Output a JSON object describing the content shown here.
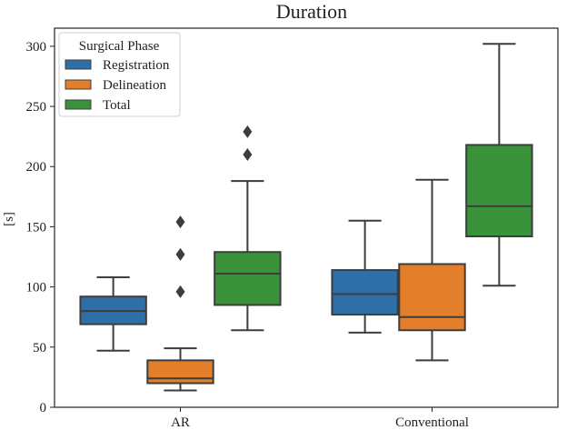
{
  "chart_data": {
    "type": "box",
    "title": "Duration",
    "xlabel": "",
    "ylabel": "[s]",
    "ylim": [
      0,
      315
    ],
    "yticks": [
      0,
      50,
      100,
      150,
      200,
      250,
      300
    ],
    "categories": [
      "AR",
      "Conventional"
    ],
    "legend": {
      "title": "Surgical Phase",
      "placement": "top-left"
    },
    "series": [
      {
        "name": "Registration",
        "color": "#2f6fa7",
        "boxes": [
          {
            "category": "AR",
            "whisker_low": 47,
            "q1": 69,
            "median": 80,
            "q3": 92,
            "whisker_high": 108,
            "outliers": []
          },
          {
            "category": "Conventional",
            "whisker_low": 62,
            "q1": 77,
            "median": 94,
            "q3": 114,
            "whisker_high": 155,
            "outliers": []
          }
        ]
      },
      {
        "name": "Delineation",
        "color": "#e37f2a",
        "boxes": [
          {
            "category": "AR",
            "whisker_low": 14,
            "q1": 20,
            "median": 24,
            "q3": 39,
            "whisker_high": 49,
            "outliers": [
              96,
              127,
              154
            ]
          },
          {
            "category": "Conventional",
            "whisker_low": 39,
            "q1": 64,
            "median": 75,
            "q3": 119,
            "whisker_high": 189,
            "outliers": []
          }
        ]
      },
      {
        "name": "Total",
        "color": "#3a923a",
        "boxes": [
          {
            "category": "AR",
            "whisker_low": 64,
            "q1": 85,
            "median": 111,
            "q3": 129,
            "whisker_high": 188,
            "outliers": [
              210,
              229
            ]
          },
          {
            "category": "Conventional",
            "whisker_low": 101,
            "q1": 142,
            "median": 167,
            "q3": 218,
            "whisker_high": 302,
            "outliers": []
          }
        ]
      }
    ]
  }
}
